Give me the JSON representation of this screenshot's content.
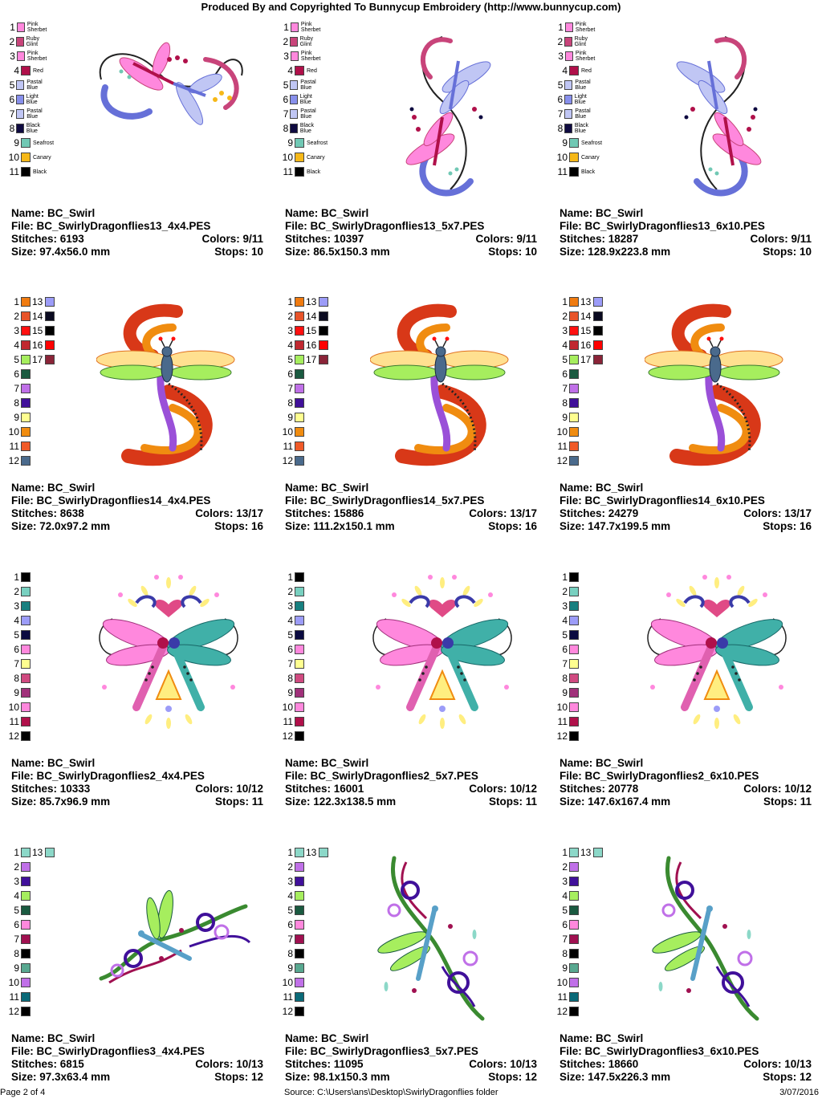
{
  "header": "Produced By and Copyrighted To Bunnycup Embroidery (http://www.bunnycup.com)",
  "footer": {
    "page": "Page 2 of 4",
    "source": "Source: C:\\Users\\ans\\Desktop\\SwirlyDragonflies folder",
    "date": "3/07/2016"
  },
  "labels": {
    "name": "Name: ",
    "file": "File: ",
    "stitches": "Stitches: ",
    "colors": "Colors: ",
    "size": "Size: ",
    "stops": "Stops: "
  },
  "palettes": {
    "p13": {
      "colors": [
        {
          "n": "1",
          "name": "Pink Sherbet",
          "hex": "#ff88dd"
        },
        {
          "n": "2",
          "name": "Ruby Glint",
          "hex": "#c8447a"
        },
        {
          "n": "3",
          "name": "Pink Sherbet",
          "hex": "#ff88dd"
        },
        {
          "n": "4",
          "name": "Red",
          "hex": "#b0104a"
        },
        {
          "n": "5",
          "name": "Pastal Blue",
          "hex": "#c0c6f4"
        },
        {
          "n": "6",
          "name": "Light Blue",
          "hex": "#8890ec"
        },
        {
          "n": "7",
          "name": "Pastal Blue",
          "hex": "#c0c6f4"
        },
        {
          "n": "8",
          "name": "Black Blue",
          "hex": "#0e0a40"
        },
        {
          "n": "9",
          "name": "Seafrost",
          "hex": "#70c8b4"
        },
        {
          "n": "10",
          "name": "Canary",
          "hex": "#f6b818"
        },
        {
          "n": "11",
          "name": "Black",
          "hex": "#000000"
        }
      ],
      "extra": []
    },
    "p14": {
      "colors": [
        {
          "n": "1",
          "hex": "#f07b10"
        },
        {
          "n": "2",
          "hex": "#e8542a"
        },
        {
          "n": "3",
          "hex": "#ff1010"
        },
        {
          "n": "4",
          "hex": "#c02830"
        },
        {
          "n": "5",
          "hex": "#a6ee5e"
        },
        {
          "n": "6",
          "hex": "#1a5a40"
        },
        {
          "n": "7",
          "hex": "#c070e8"
        },
        {
          "n": "8",
          "hex": "#40109a"
        },
        {
          "n": "9",
          "hex": "#ffff90"
        },
        {
          "n": "10",
          "hex": "#f08c10"
        },
        {
          "n": "11",
          "hex": "#f05a28"
        },
        {
          "n": "12",
          "hex": "#4a6a8c"
        }
      ],
      "extra": [
        {
          "n": "13",
          "hex": "#9c9cf8"
        },
        {
          "n": "14",
          "hex": "#0a0a20"
        },
        {
          "n": "15",
          "hex": "#000000"
        },
        {
          "n": "16",
          "hex": "#ff0000"
        },
        {
          "n": "17",
          "hex": "#8a2438"
        }
      ]
    },
    "p2": {
      "colors": [
        {
          "n": "1",
          "hex": "#000000"
        },
        {
          "n": "2",
          "hex": "#78d0c0"
        },
        {
          "n": "3",
          "hex": "#188080"
        },
        {
          "n": "4",
          "hex": "#9c9cf8"
        },
        {
          "n": "5",
          "hex": "#0a0a40"
        },
        {
          "n": "6",
          "hex": "#ff88dd"
        },
        {
          "n": "7",
          "hex": "#ffff90"
        },
        {
          "n": "8",
          "hex": "#d04a80"
        },
        {
          "n": "9",
          "hex": "#a0307a"
        },
        {
          "n": "10",
          "hex": "#ff88dd"
        },
        {
          "n": "11",
          "hex": "#b0104a"
        },
        {
          "n": "12",
          "hex": "#000000"
        }
      ],
      "extra": []
    },
    "p3": {
      "colors": [
        {
          "n": "1",
          "hex": "#8cd8c8"
        },
        {
          "n": "2",
          "hex": "#c070e8"
        },
        {
          "n": "3",
          "hex": "#40109a"
        },
        {
          "n": "4",
          "hex": "#a6ee5e"
        },
        {
          "n": "5",
          "hex": "#1a5a40"
        },
        {
          "n": "6",
          "hex": "#ff88dd"
        },
        {
          "n": "7",
          "hex": "#a01050"
        },
        {
          "n": "8",
          "hex": "#000000"
        },
        {
          "n": "9",
          "hex": "#58a890"
        },
        {
          "n": "10",
          "hex": "#c070e8"
        },
        {
          "n": "11",
          "hex": "#0a6a78"
        },
        {
          "n": "12",
          "hex": "#000000"
        }
      ],
      "extra": [
        {
          "n": "13",
          "hex": "#8cd8c8"
        }
      ]
    }
  },
  "designs": [
    {
      "palette": "p13",
      "art": "d13",
      "flip": false,
      "name": "BC_Swirl",
      "file": "BC_SwirlyDragonflies13_4x4.PES",
      "stitches": "6193",
      "colors": "9/11",
      "size": "97.4x56.0 mm",
      "stops": "10"
    },
    {
      "palette": "p13",
      "art": "d13v",
      "flip": false,
      "name": "BC_Swirl",
      "file": "BC_SwirlyDragonflies13_5x7.PES",
      "stitches": "10397",
      "colors": "9/11",
      "size": "86.5x150.3 mm",
      "stops": "10"
    },
    {
      "palette": "p13",
      "art": "d13v",
      "flip": true,
      "name": "BC_Swirl",
      "file": "BC_SwirlyDragonflies13_6x10.PES",
      "stitches": "18287",
      "colors": "9/11",
      "size": "128.9x223.8 mm",
      "stops": "10"
    },
    {
      "palette": "p14",
      "art": "d14",
      "flip": false,
      "name": "BC_Swirl",
      "file": "BC_SwirlyDragonflies14_4x4.PES",
      "stitches": "8638",
      "colors": "13/17",
      "size": "72.0x97.2 mm",
      "stops": "16"
    },
    {
      "palette": "p14",
      "art": "d14",
      "flip": false,
      "name": "BC_Swirl",
      "file": "BC_SwirlyDragonflies14_5x7.PES",
      "stitches": "15886",
      "colors": "13/17",
      "size": "111.2x150.1 mm",
      "stops": "16"
    },
    {
      "palette": "p14",
      "art": "d14",
      "flip": false,
      "name": "BC_Swirl",
      "file": "BC_SwirlyDragonflies14_6x10.PES",
      "stitches": "24279",
      "colors": "13/17",
      "size": "147.7x199.5 mm",
      "stops": "16"
    },
    {
      "palette": "p2",
      "art": "d2",
      "flip": false,
      "name": "BC_Swirl",
      "file": "BC_SwirlyDragonflies2_4x4.PES",
      "stitches": "10333",
      "colors": "10/12",
      "size": "85.7x96.9 mm",
      "stops": "11"
    },
    {
      "palette": "p2",
      "art": "d2",
      "flip": false,
      "name": "BC_Swirl",
      "file": "BC_SwirlyDragonflies2_5x7.PES",
      "stitches": "16001",
      "colors": "10/12",
      "size": "122.3x138.5 mm",
      "stops": "11"
    },
    {
      "palette": "p2",
      "art": "d2",
      "flip": false,
      "name": "BC_Swirl",
      "file": "BC_SwirlyDragonflies2_6x10.PES",
      "stitches": "20778",
      "colors": "10/12",
      "size": "147.6x167.4 mm",
      "stops": "11"
    },
    {
      "palette": "p3",
      "art": "d3",
      "flip": false,
      "name": "BC_Swirl",
      "file": "BC_SwirlyDragonflies3_4x4.PES",
      "stitches": "6815",
      "colors": "10/13",
      "size": "97.3x63.4 mm",
      "stops": "12"
    },
    {
      "palette": "p3",
      "art": "d3v",
      "flip": false,
      "name": "BC_Swirl",
      "file": "BC_SwirlyDragonflies3_5x7.PES",
      "stitches": "11095",
      "colors": "10/13",
      "size": "98.1x150.3 mm",
      "stops": "12"
    },
    {
      "palette": "p3",
      "art": "d3v",
      "flip": false,
      "name": "BC_Swirl",
      "file": "BC_SwirlyDragonflies3_6x10.PES",
      "stitches": "18660",
      "colors": "10/13",
      "size": "147.5x226.3 mm",
      "stops": "12"
    }
  ]
}
